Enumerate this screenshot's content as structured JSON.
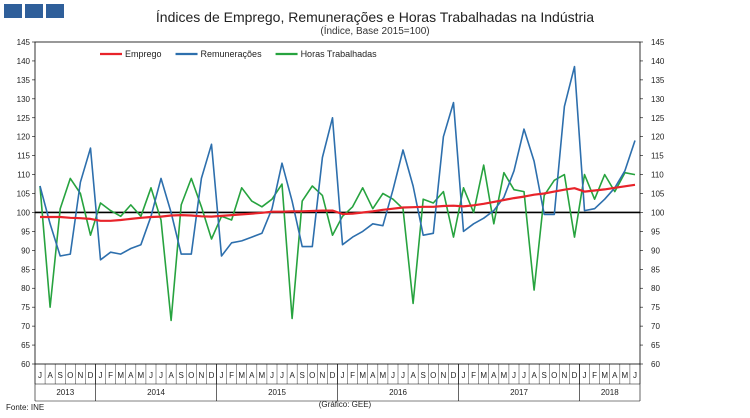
{
  "header": {
    "title": "Índices de Emprego, Remunerações e Horas Trabalhadas na Indústria",
    "subtitle": "(Índice, Base 2015=100)"
  },
  "footer": {
    "source": "Fonte: INE",
    "credit": "(Gráfico: GEE)"
  },
  "colors": {
    "logo": "#2f5f9a",
    "emprego": "#e8232a",
    "remuneracoes": "#2d6fad",
    "horas": "#27a33f",
    "baseline": "#000000"
  },
  "chart_data": {
    "type": "line",
    "title": "Índices de Emprego, Remunerações e Horas Trabalhadas na Indústria",
    "subtitle": "(Índice, Base 2015=100)",
    "ylim": [
      60,
      145
    ],
    "yticks": [
      60,
      65,
      70,
      75,
      80,
      85,
      90,
      95,
      100,
      105,
      110,
      115,
      120,
      125,
      130,
      135,
      140,
      145
    ],
    "y_axis_both_sides": true,
    "reference_line": 100,
    "legend_position": "top-left",
    "months": [
      "J",
      "A",
      "S",
      "O",
      "N",
      "D",
      "J",
      "F",
      "M",
      "A",
      "M",
      "J",
      "J",
      "A",
      "S",
      "O",
      "N",
      "D",
      "J",
      "F",
      "M",
      "A",
      "M",
      "J",
      "J",
      "A",
      "S",
      "O",
      "N",
      "D",
      "J",
      "F",
      "M",
      "A",
      "M",
      "J",
      "J",
      "A",
      "S",
      "O",
      "N",
      "D",
      "J",
      "F",
      "M",
      "A",
      "M",
      "J",
      "J",
      "A",
      "S",
      "O",
      "N",
      "D",
      "J",
      "F",
      "M",
      "A",
      "M",
      "J"
    ],
    "years": [
      {
        "label": "2013",
        "start": 0,
        "count": 6
      },
      {
        "label": "2014",
        "start": 6,
        "count": 12
      },
      {
        "label": "2015",
        "start": 18,
        "count": 12
      },
      {
        "label": "2016",
        "start": 30,
        "count": 12
      },
      {
        "label": "2017",
        "start": 42,
        "count": 12
      },
      {
        "label": "2018",
        "start": 54,
        "count": 6
      }
    ],
    "series": [
      {
        "name": "Emprego",
        "color": "#e8232a",
        "values": [
          98.8,
          98.8,
          98.8,
          98.6,
          98.5,
          98.3,
          97.8,
          97.8,
          98.0,
          98.3,
          98.6,
          98.8,
          98.9,
          99.2,
          99.3,
          99.2,
          99.0,
          98.9,
          99.1,
          99.3,
          99.5,
          99.7,
          99.9,
          100.2,
          100.2,
          100.3,
          100.3,
          100.4,
          100.5,
          100.5,
          99.6,
          99.7,
          100.0,
          100.3,
          100.7,
          101.0,
          101.3,
          101.4,
          101.5,
          101.5,
          101.7,
          101.8,
          101.6,
          101.9,
          102.3,
          102.8,
          103.3,
          103.8,
          104.2,
          104.7,
          105.0,
          105.5,
          106.0,
          106.4,
          105.5,
          105.8,
          106.1,
          106.5,
          106.9,
          107.3
        ]
      },
      {
        "name": "Remunerações",
        "color": "#2d6fad",
        "values": [
          107.0,
          97.0,
          88.5,
          89.0,
          108.0,
          117.0,
          87.5,
          89.5,
          89.0,
          90.5,
          91.5,
          99.0,
          109.0,
          100.0,
          89.0,
          89.0,
          109.0,
          118.0,
          88.5,
          92.0,
          92.5,
          93.5,
          94.5,
          101.0,
          113.0,
          103.0,
          91.0,
          91.0,
          114.5,
          125.0,
          91.5,
          93.5,
          95.0,
          97.0,
          96.5,
          106.0,
          116.5,
          107.0,
          94.0,
          94.5,
          120.0,
          129.0,
          95.0,
          97.0,
          98.5,
          100.5,
          104.0,
          111.0,
          122.0,
          113.5,
          99.5,
          99.5,
          128.0,
          138.5,
          100.5,
          101.0,
          103.5,
          106.5,
          111.0,
          119.0
        ]
      },
      {
        "name": "Horas Trabalhadas",
        "color": "#27a33f",
        "values": [
          107.0,
          75.0,
          101.0,
          109.0,
          105.0,
          94.0,
          102.5,
          100.5,
          99.0,
          102.0,
          99.0,
          106.5,
          98.0,
          71.5,
          102.0,
          109.0,
          101.5,
          93.0,
          99.0,
          98.0,
          106.5,
          103.0,
          101.5,
          103.5,
          107.5,
          72.0,
          103.0,
          107.0,
          104.5,
          94.0,
          99.0,
          101.5,
          106.5,
          101.0,
          105.0,
          103.5,
          101.0,
          76.0,
          103.5,
          102.5,
          105.5,
          93.5,
          106.5,
          100.0,
          112.5,
          97.0,
          110.5,
          106.0,
          105.5,
          79.5,
          104.5,
          108.5,
          110.0,
          93.5,
          110.0,
          103.5,
          110.0,
          105.5,
          110.5,
          110.0
        ]
      }
    ]
  }
}
